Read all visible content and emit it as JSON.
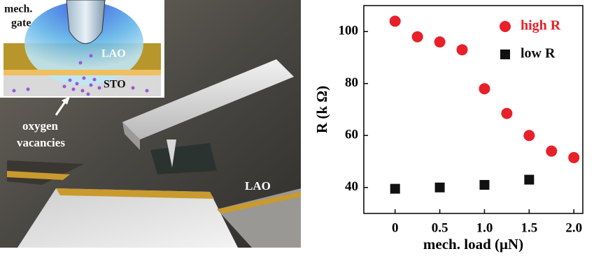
{
  "image": {
    "labels": {
      "gate": [
        "mech.",
        "gate"
      ],
      "lao_inset": "LAO",
      "sto_inset": "STO",
      "vacancies": [
        "oxygen",
        "vacancies"
      ],
      "lao": "LAO"
    }
  },
  "chart_data": {
    "type": "scatter",
    "x_label": "mech. load (μN)",
    "y_label": "R (k Ω)",
    "xlim": [
      -0.35,
      2.1
    ],
    "ylim": [
      30,
      110
    ],
    "xticks": [
      0,
      0.5,
      {
        "value": 1,
        "label": "1.0"
      },
      1.5,
      {
        "value": 2,
        "label": "2.0"
      }
    ],
    "yticks": [
      40,
      60,
      80,
      100
    ],
    "grid": false,
    "legend": "upper right",
    "series": [
      {
        "name": "high R",
        "color": "#e8202a",
        "marker": "circle",
        "x": [
          0,
          0.25,
          0.5,
          0.75,
          1,
          1.25,
          1.5,
          1.75,
          2
        ],
        "values": [
          104,
          98,
          96,
          93,
          78,
          68.5,
          60,
          54,
          51.5
        ]
      },
      {
        "name": "low R",
        "color": "#111111",
        "marker": "square",
        "x": [
          0,
          0.5,
          1,
          1.5
        ],
        "values": [
          39.5,
          40,
          41,
          43
        ]
      }
    ]
  }
}
